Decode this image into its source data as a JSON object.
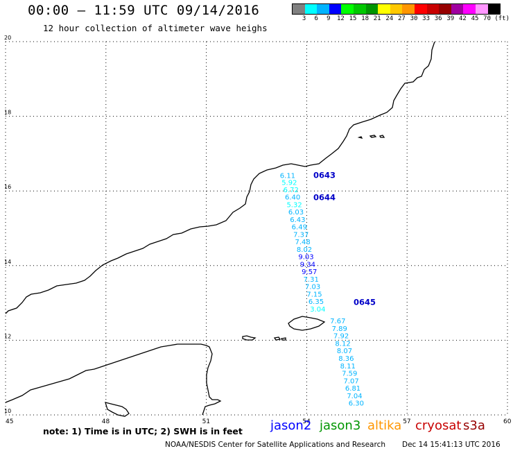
{
  "header": {
    "title": "00:00 – 11:59 UTC 09/14/2016",
    "subtitle": "12 hour collection of altimeter wave heighs"
  },
  "legend": {
    "colors": [
      "#808080",
      "#00ffff",
      "#00b4ff",
      "#0000ff",
      "#00ff00",
      "#00c800",
      "#009600",
      "#ffff00",
      "#ffc800",
      "#ff9600",
      "#ff0000",
      "#c80000",
      "#960000",
      "#a000a0",
      "#ff00ff",
      "#ff96ff",
      "#000000"
    ],
    "labels": [
      "3",
      "6",
      "9",
      "12",
      "15",
      "18",
      "21",
      "24",
      "27",
      "30",
      "33",
      "36",
      "39",
      "42",
      "45",
      "70",
      "(ft)"
    ]
  },
  "axes": {
    "lon_ticks": [
      "45",
      "48",
      "51",
      "54",
      "57",
      "60"
    ],
    "lat_ticks": [
      "10",
      "12",
      "14",
      "16",
      "18",
      "20"
    ],
    "lon_range": [
      45,
      60
    ],
    "lat_range": [
      10,
      20
    ]
  },
  "track": {
    "time_labels": [
      {
        "text": "0643",
        "lon": 54.2,
        "lat": 16.35
      },
      {
        "text": "0644",
        "lon": 54.2,
        "lat": 15.75
      },
      {
        "text": "0645",
        "lon": 55.4,
        "lat": 12.95
      }
    ],
    "points": [
      {
        "v": "6.11",
        "lon": 53.2,
        "lat": 16.35,
        "color": "#00b4ff"
      },
      {
        "v": "5.92",
        "lon": 53.25,
        "lat": 16.16,
        "color": "#00ffff"
      },
      {
        "v": "6.72",
        "lon": 53.3,
        "lat": 15.97,
        "color": "#00ffff"
      },
      {
        "v": "6.40",
        "lon": 53.35,
        "lat": 15.77,
        "color": "#00b4ff"
      },
      {
        "v": "5.32",
        "lon": 53.4,
        "lat": 15.57,
        "color": "#00ffff"
      },
      {
        "v": "6.03",
        "lon": 53.45,
        "lat": 15.37,
        "color": "#00b4ff"
      },
      {
        "v": "6.43",
        "lon": 53.5,
        "lat": 15.17,
        "color": "#00b4ff"
      },
      {
        "v": "6.49",
        "lon": 53.55,
        "lat": 14.97,
        "color": "#00b4ff"
      },
      {
        "v": "7.37",
        "lon": 53.6,
        "lat": 14.77,
        "color": "#00b4ff"
      },
      {
        "v": "7.48",
        "lon": 53.65,
        "lat": 14.57,
        "color": "#00b4ff"
      },
      {
        "v": "8.02",
        "lon": 53.7,
        "lat": 14.37,
        "color": "#00b4ff"
      },
      {
        "v": "9.03",
        "lon": 53.75,
        "lat": 14.17,
        "color": "#0000ff"
      },
      {
        "v": "9.34",
        "lon": 53.8,
        "lat": 13.97,
        "color": "#0000ff"
      },
      {
        "v": "9.57",
        "lon": 53.85,
        "lat": 13.77,
        "color": "#0000ff"
      },
      {
        "v": "7.31",
        "lon": 53.9,
        "lat": 13.57,
        "color": "#00b4ff"
      },
      {
        "v": "7.03",
        "lon": 53.95,
        "lat": 13.37,
        "color": "#00b4ff"
      },
      {
        "v": "7.15",
        "lon": 54.0,
        "lat": 13.17,
        "color": "#00b4ff"
      },
      {
        "v": "6.35",
        "lon": 54.05,
        "lat": 12.97,
        "color": "#00b4ff"
      },
      {
        "v": "3.04",
        "lon": 54.1,
        "lat": 12.77,
        "color": "#00ffff"
      },
      {
        "v": "7.67",
        "lon": 54.7,
        "lat": 12.45,
        "color": "#00b4ff"
      },
      {
        "v": "7.89",
        "lon": 54.75,
        "lat": 12.25,
        "color": "#00b4ff"
      },
      {
        "v": "7.92",
        "lon": 54.8,
        "lat": 12.05,
        "color": "#00b4ff"
      },
      {
        "v": "8.12",
        "lon": 54.85,
        "lat": 11.85,
        "color": "#00b4ff"
      },
      {
        "v": "8.07",
        "lon": 54.9,
        "lat": 11.65,
        "color": "#00b4ff"
      },
      {
        "v": "8.36",
        "lon": 54.95,
        "lat": 11.45,
        "color": "#00b4ff"
      },
      {
        "v": "8.11",
        "lon": 55.0,
        "lat": 11.25,
        "color": "#00b4ff"
      },
      {
        "v": "7.59",
        "lon": 55.05,
        "lat": 11.05,
        "color": "#00b4ff"
      },
      {
        "v": "7.07",
        "lon": 55.1,
        "lat": 10.85,
        "color": "#00b4ff"
      },
      {
        "v": "6.81",
        "lon": 55.15,
        "lat": 10.65,
        "color": "#00b4ff"
      },
      {
        "v": "7.04",
        "lon": 55.2,
        "lat": 10.45,
        "color": "#00b4ff"
      },
      {
        "v": "6.30",
        "lon": 55.25,
        "lat": 10.25,
        "color": "#00b4ff"
      }
    ]
  },
  "footer": {
    "note": "note: 1) Time is in UTC; 2) SWH is in feet",
    "satellites": [
      {
        "name": "jason2",
        "color": "#0000ff"
      },
      {
        "name": "jason3",
        "color": "#009600"
      },
      {
        "name": "altika",
        "color": "#ff9600"
      },
      {
        "name": "cryosat",
        "color": "#c80000"
      },
      {
        "name": "s3a",
        "color": "#960000"
      }
    ],
    "credit": "NOAA/NESDIS Center for Satellite Applications and Research",
    "datetime": "Dec 14 15:41:13 UTC 2016"
  }
}
